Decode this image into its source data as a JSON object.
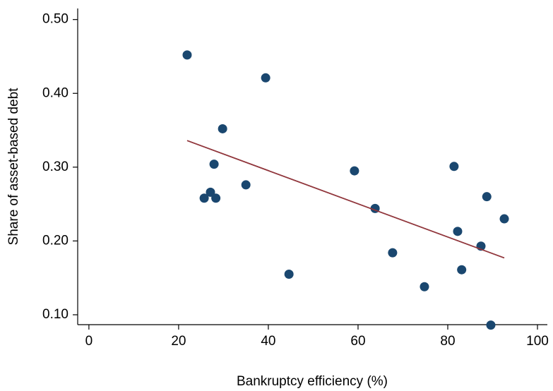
{
  "chart_data": {
    "type": "scatter",
    "x_label": "Bankruptcy efficiency (%)",
    "y_label": "Share of asset-based debt",
    "x": [
      21.9,
      39.4,
      29.8,
      27.9,
      27.1,
      25.7,
      28.3,
      35.0,
      44.6,
      59.2,
      63.8,
      67.7,
      74.8,
      81.4,
      82.2,
      83.1,
      88.7,
      87.4,
      92.6,
      89.6
    ],
    "values": [
      0.452,
      0.421,
      0.352,
      0.304,
      0.266,
      0.258,
      0.258,
      0.276,
      0.155,
      0.295,
      0.244,
      0.184,
      0.138,
      0.301,
      0.213,
      0.161,
      0.26,
      0.193,
      0.23,
      0.086
    ],
    "color": "#1a476f",
    "fit_line": {
      "x": [
        21.9,
        92.6
      ],
      "y": [
        0.336,
        0.177
      ],
      "color": "#90353b"
    },
    "xlim": [
      -2.5,
      102.2
    ],
    "ylim": [
      0.0866,
      0.515
    ],
    "xticks": [
      0,
      20,
      40,
      60,
      80,
      100
    ],
    "yticks": [
      {
        "value": 0.1,
        "label": "0.10"
      },
      {
        "value": 0.2,
        "label": "0.20"
      },
      {
        "value": 0.3,
        "label": "0.30"
      },
      {
        "value": 0.4,
        "label": "0.40"
      },
      {
        "value": 0.5,
        "label": "0.50"
      }
    ]
  }
}
